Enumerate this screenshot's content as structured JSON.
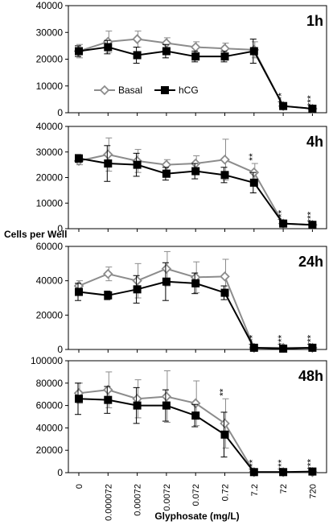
{
  "chart_data": [
    {
      "type": "line",
      "title": "1h",
      "ylim": [
        0,
        40000
      ],
      "yticks": [
        0,
        10000,
        20000,
        30000,
        40000
      ],
      "legend": {
        "placement": "center-left",
        "entries": [
          "Basal",
          "hCG"
        ]
      },
      "series": [
        {
          "name": "Basal",
          "color": "#8c8c8c",
          "marker": "open-diamond",
          "values": [
            23000,
            26500,
            27500,
            26000,
            24500,
            24000,
            23500,
            2500,
            1500
          ],
          "errors": [
            2500,
            4000,
            3000,
            2000,
            2000,
            2000,
            3000,
            500,
            500
          ]
        },
        {
          "name": "hCG",
          "color": "#000000",
          "marker": "filled-square",
          "values": [
            23000,
            24500,
            21500,
            23000,
            21000,
            21000,
            23000,
            2500,
            1500
          ],
          "errors": [
            2000,
            2500,
            3000,
            2500,
            2000,
            2000,
            4500,
            500,
            500
          ]
        }
      ],
      "annotations": [
        {
          "x_index": 7,
          "text": "***"
        },
        {
          "x_index": 8,
          "text": "***"
        }
      ]
    },
    {
      "type": "line",
      "title": "4h",
      "ylim": [
        0,
        40000
      ],
      "yticks": [
        0,
        10000,
        20000,
        30000,
        40000
      ],
      "series": [
        {
          "name": "Basal",
          "color": "#8c8c8c",
          "marker": "open-diamond",
          "values": [
            26500,
            29000,
            26500,
            25000,
            25500,
            27000,
            22000,
            2000,
            1500
          ],
          "errors": [
            1500,
            6500,
            4500,
            2000,
            3000,
            8000,
            3500,
            600,
            500
          ]
        },
        {
          "name": "hCG",
          "color": "#000000",
          "marker": "filled-square",
          "values": [
            27500,
            25500,
            25000,
            21500,
            22500,
            21000,
            18000,
            2000,
            1500
          ],
          "errors": [
            1500,
            7000,
            4500,
            2500,
            3000,
            3000,
            4000,
            600,
            500
          ]
        }
      ],
      "annotations": [
        {
          "x_index": 6,
          "text": "**"
        },
        {
          "x_index": 7,
          "text": "***"
        },
        {
          "x_index": 8,
          "text": "***"
        }
      ]
    },
    {
      "type": "line",
      "title": "24h",
      "ylim": [
        0,
        60000
      ],
      "yticks": [
        0,
        20000,
        40000,
        60000
      ],
      "series": [
        {
          "name": "Basal",
          "color": "#8c8c8c",
          "marker": "open-diamond",
          "values": [
            37000,
            44000,
            40000,
            47000,
            42000,
            42500,
            1000,
            1000,
            1000
          ],
          "errors": [
            3000,
            4000,
            10000,
            10000,
            9000,
            10000,
            500,
            500,
            500
          ]
        },
        {
          "name": "hCG",
          "color": "#000000",
          "marker": "filled-square",
          "values": [
            33500,
            31500,
            35000,
            39500,
            38500,
            33000,
            1000,
            500,
            1000
          ],
          "errors": [
            5000,
            2500,
            8000,
            11000,
            6000,
            4000,
            500,
            500,
            500
          ]
        }
      ],
      "annotations": [
        {
          "x_index": 6,
          "text": "***"
        },
        {
          "x_index": 7,
          "text": "***"
        },
        {
          "x_index": 8,
          "text": "***"
        }
      ]
    },
    {
      "type": "line",
      "title": "48h",
      "ylim": [
        0,
        100000
      ],
      "yticks": [
        0,
        20000,
        40000,
        60000,
        80000,
        100000
      ],
      "series": [
        {
          "name": "Basal",
          "color": "#8c8c8c",
          "marker": "open-diamond",
          "values": [
            71000,
            74000,
            66000,
            68000,
            62000,
            44000,
            500,
            500,
            500
          ],
          "errors": [
            9000,
            16000,
            17000,
            23000,
            20000,
            22000,
            500,
            500,
            500
          ]
        },
        {
          "name": "hCG",
          "color": "#000000",
          "marker": "filled-square",
          "values": [
            66000,
            65000,
            60000,
            60000,
            51000,
            34000,
            500,
            500,
            1000
          ],
          "errors": [
            14000,
            12000,
            16000,
            14000,
            10000,
            20000,
            500,
            500,
            500
          ]
        }
      ],
      "annotations": [
        {
          "x_index": 5,
          "text": "**"
        },
        {
          "x_index": 6,
          "text": "***"
        },
        {
          "x_index": 7,
          "text": "***"
        },
        {
          "x_index": 8,
          "text": "***"
        }
      ]
    }
  ],
  "categories": [
    "0",
    "0.000072",
    "0.00072",
    "0.0072",
    "0.072",
    "0.72",
    "7.2",
    "72",
    "720"
  ],
  "xlabel": "Glyphosate (mg/L)",
  "ylabel": "Cells per Well",
  "legend_labels": [
    "Basal",
    "hCG"
  ]
}
